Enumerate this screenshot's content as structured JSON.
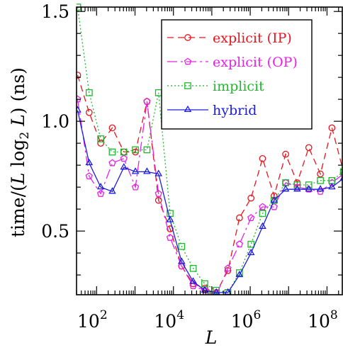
{
  "chart_data": {
    "type": "line",
    "xlabel": "L",
    "ylabel": "time/(L log₂ L) (ns)",
    "ylabel_parts": {
      "pre": "time/(",
      "L1": "L",
      "log": " log",
      "sub": "2",
      "L2": " L",
      "post": ") (ns)"
    },
    "xscale": "log",
    "xlim": [
      30,
      250000000
    ],
    "ylim": [
      0.21,
      1.52
    ],
    "grid": false,
    "legend_position": "top-right",
    "x_ticks": [
      {
        "base": "10",
        "exp": "2",
        "value": 100
      },
      {
        "base": "10",
        "exp": "4",
        "value": 10000
      },
      {
        "base": "10",
        "exp": "6",
        "value": 1000000
      },
      {
        "base": "10",
        "exp": "8",
        "value": 100000000
      }
    ],
    "y_ticks": [
      {
        "label": "0.5",
        "value": 0.5
      },
      {
        "label": "1.0",
        "value": 1.0
      },
      {
        "label": "1.5",
        "value": 1.5
      }
    ],
    "x": [
      32,
      64,
      128,
      256,
      512,
      1024,
      2048,
      4096,
      8192,
      16384,
      32768,
      65536,
      131072,
      262144,
      524288,
      1048576,
      2097152,
      4194304,
      8388608,
      16777216,
      33554432,
      67108864,
      134217728,
      268435456
    ],
    "series": [
      {
        "name": "explicit (IP)",
        "color": "#e8141e",
        "marker": "circle",
        "dash": "9,6",
        "values": [
          1.21,
          1.04,
          0.9,
          0.97,
          0.86,
          0.86,
          1.09,
          0.64,
          0.51,
          0.34,
          0.26,
          0.24,
          0.22,
          0.32,
          0.56,
          0.65,
          0.83,
          0.66,
          0.85,
          0.72,
          0.88,
          0.76,
          0.97,
          0.77
        ]
      },
      {
        "name": "explicit (OP)",
        "color": "#e620e6",
        "marker": "pentagon",
        "dash": "14,5,3,5",
        "values": [
          1.1,
          0.75,
          0.67,
          0.81,
          0.83,
          0.7,
          1.09,
          0.67,
          0.47,
          0.34,
          0.25,
          0.23,
          0.21,
          0.33,
          0.44,
          0.56,
          0.61,
          0.61,
          0.72,
          0.7,
          0.69,
          0.68,
          0.72,
          0.76
        ]
      },
      {
        "name": "implicit",
        "color": "#1fb82e",
        "marker": "square",
        "dash": "2,3",
        "values": [
          1.52,
          1.13,
          0.92,
          0.86,
          0.86,
          0.87,
          0.87,
          1.13,
          0.58,
          0.43,
          0.33,
          0.26,
          0.23,
          0.22,
          0.31,
          0.44,
          0.58,
          0.64,
          0.72,
          0.71,
          0.71,
          0.73,
          0.73,
          0.77
        ]
      },
      {
        "name": "hybrid",
        "color": "#1c1ce0",
        "marker": "triangle",
        "dash": "",
        "values": [
          1.05,
          0.81,
          0.7,
          0.68,
          0.79,
          0.77,
          0.77,
          0.76,
          0.55,
          0.36,
          0.27,
          0.23,
          0.22,
          0.22,
          0.3,
          0.4,
          0.52,
          0.64,
          0.69,
          0.69,
          0.69,
          0.69,
          0.7,
          0.74
        ]
      }
    ]
  }
}
